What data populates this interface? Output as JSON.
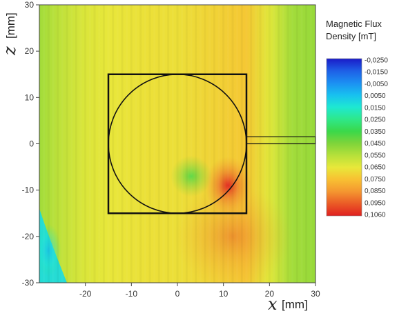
{
  "chart_data": {
    "type": "heatmap",
    "xlabel_var": "x",
    "xlabel_unit": "[mm]",
    "ylabel_var": "z",
    "ylabel_unit": "[mm]",
    "xlim": [
      -30,
      30
    ],
    "ylim": [
      -30,
      30
    ],
    "x_ticks": [
      -20,
      -10,
      0,
      10,
      20,
      30
    ],
    "y_ticks": [
      30,
      20,
      10,
      0,
      -10,
      -20,
      -30
    ],
    "colorbar": {
      "title_line1": "Magnetic Flux",
      "title_line2": "Density [mT]",
      "labels": [
        "-0,0250",
        "-0,0150",
        "-0,0050",
        "0,0050",
        "0,0150",
        "0,0250",
        "0,0350",
        "0,0450",
        "0,0550",
        "0,0650",
        "0,0750",
        "0,0850",
        "0,0950",
        "0,1060"
      ],
      "colors": [
        "#1a1ac8",
        "#1e5fe6",
        "#1c8ff2",
        "#18c0f0",
        "#1ee8d2",
        "#2ee88a",
        "#3ad84a",
        "#7ed43a",
        "#b6e03a",
        "#e8e83a",
        "#f8c032",
        "#f49630",
        "#ea5a26",
        "#e02020"
      ]
    },
    "field_bands_x": [
      -30,
      -25,
      -20,
      -15,
      -10,
      -5,
      0,
      5,
      10,
      15,
      20,
      25,
      30
    ],
    "field_bands_value": [
      0.052,
      0.058,
      0.063,
      0.066,
      0.067,
      0.068,
      0.068,
      0.07,
      0.072,
      0.074,
      0.064,
      0.052,
      0.05
    ],
    "hotspot": {
      "x": 11,
      "z": -9,
      "value": 0.106
    },
    "low_region": {
      "x": -28,
      "z": -25,
      "value": 0.012
    },
    "overlay": {
      "square": {
        "x": [
          -15,
          15
        ],
        "z": [
          -15,
          15
        ]
      },
      "circle": {
        "cx": 0,
        "cz": 0,
        "r": 15
      },
      "bar": {
        "x": [
          15,
          30
        ],
        "z": [
          0,
          1.5
        ]
      }
    }
  }
}
